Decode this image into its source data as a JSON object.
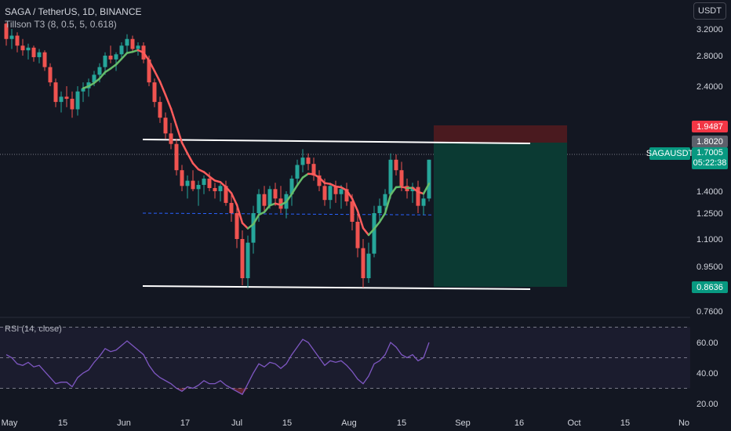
{
  "header": {
    "title": "SAGA / TetherUS, 1D, BINANCE",
    "indicator": "Tillson T3 (8, 0.5, 5, 0.618)",
    "currency_button": "USDT"
  },
  "price_axis": {
    "ticks": [
      "3.2000",
      "2.8000",
      "2.4000",
      "1.4000",
      "1.2500",
      "1.1000",
      "0.9500",
      "0.7600"
    ]
  },
  "price_tags": {
    "stop": "1.9487",
    "target_line": "1.8020",
    "symbol": "SAGAUSDT",
    "last_price": "1.7005",
    "countdown": "05:22:38",
    "target": "0.8636"
  },
  "rsi": {
    "title": "RSI (14, close)",
    "ticks": [
      "60.00",
      "40.00",
      "20.00"
    ]
  },
  "time_axis": {
    "ticks": [
      "May",
      "15",
      "Jun",
      "17",
      "Jul",
      "15",
      "Aug",
      "15",
      "Sep",
      "16",
      "Oct",
      "15",
      "No"
    ]
  },
  "colors": {
    "background": "#131722",
    "up": "#26a69a",
    "down": "#ef5350",
    "t3_up": "#66bb6a",
    "t3_down": "#ff5c5c",
    "rsi_line": "#7e57c2",
    "stop_zone": "#4a1a1f",
    "target_zone": "#0b3a33"
  },
  "chart_data": {
    "type": "candlestick",
    "symbol": "SAGA / TetherUS",
    "interval": "1D",
    "exchange": "BINANCE",
    "last_price": 1.7005,
    "channel": {
      "upper": 1.8,
      "lower": 0.86
    },
    "position": {
      "entry": 1.7005,
      "stop": 1.9487,
      "target": 0.8636
    },
    "candles": [
      [
        3.28,
        3.3,
        2.95,
        3.05
      ],
      [
        3.05,
        3.2,
        2.9,
        3.1
      ],
      [
        3.1,
        3.15,
        2.85,
        2.95
      ],
      [
        2.95,
        3.05,
        2.8,
        2.88
      ],
      [
        2.88,
        2.98,
        2.75,
        2.92
      ],
      [
        2.92,
        2.95,
        2.72,
        2.78
      ],
      [
        2.78,
        2.9,
        2.7,
        2.85
      ],
      [
        2.85,
        2.88,
        2.6,
        2.65
      ],
      [
        2.65,
        2.7,
        2.4,
        2.45
      ],
      [
        2.45,
        2.5,
        2.2,
        2.25
      ],
      [
        2.25,
        2.35,
        2.15,
        2.3
      ],
      [
        2.3,
        2.4,
        2.2,
        2.28
      ],
      [
        2.28,
        2.35,
        2.1,
        2.18
      ],
      [
        2.18,
        2.4,
        2.12,
        2.35
      ],
      [
        2.35,
        2.45,
        2.25,
        2.38
      ],
      [
        2.38,
        2.5,
        2.3,
        2.45
      ],
      [
        2.45,
        2.6,
        2.4,
        2.55
      ],
      [
        2.55,
        2.7,
        2.45,
        2.65
      ],
      [
        2.65,
        2.85,
        2.55,
        2.8
      ],
      [
        2.8,
        2.95,
        2.7,
        2.75
      ],
      [
        2.75,
        2.85,
        2.6,
        2.82
      ],
      [
        2.82,
        3.0,
        2.75,
        2.95
      ],
      [
        2.95,
        3.12,
        2.85,
        3.05
      ],
      [
        3.05,
        3.1,
        2.85,
        2.9
      ],
      [
        2.9,
        3.0,
        2.8,
        2.95
      ],
      [
        2.95,
        3.0,
        2.7,
        2.75
      ],
      [
        2.75,
        2.8,
        2.4,
        2.45
      ],
      [
        2.45,
        2.5,
        2.2,
        2.25
      ],
      [
        2.25,
        2.3,
        2.05,
        2.1
      ],
      [
        2.1,
        2.15,
        1.9,
        1.95
      ],
      [
        1.95,
        2.05,
        1.8,
        1.85
      ],
      [
        1.85,
        1.9,
        1.55,
        1.6
      ],
      [
        1.6,
        1.65,
        1.4,
        1.45
      ],
      [
        1.45,
        1.55,
        1.35,
        1.5
      ],
      [
        1.5,
        1.6,
        1.4,
        1.42
      ],
      [
        1.42,
        1.5,
        1.3,
        1.46
      ],
      [
        1.46,
        1.55,
        1.38,
        1.52
      ],
      [
        1.52,
        1.58,
        1.4,
        1.43
      ],
      [
        1.43,
        1.48,
        1.35,
        1.4
      ],
      [
        1.4,
        1.47,
        1.33,
        1.45
      ],
      [
        1.45,
        1.5,
        1.3,
        1.32
      ],
      [
        1.32,
        1.38,
        1.2,
        1.25
      ],
      [
        1.25,
        1.3,
        1.05,
        1.1
      ],
      [
        1.1,
        1.15,
        0.87,
        0.9
      ],
      [
        0.9,
        1.12,
        0.86,
        1.08
      ],
      [
        1.08,
        1.3,
        1.02,
        1.25
      ],
      [
        1.25,
        1.42,
        1.2,
        1.38
      ],
      [
        1.38,
        1.45,
        1.25,
        1.3
      ],
      [
        1.3,
        1.45,
        1.28,
        1.42
      ],
      [
        1.42,
        1.48,
        1.3,
        1.35
      ],
      [
        1.35,
        1.45,
        1.25,
        1.28
      ],
      [
        1.28,
        1.4,
        1.22,
        1.38
      ],
      [
        1.38,
        1.55,
        1.3,
        1.52
      ],
      [
        1.52,
        1.7,
        1.45,
        1.65
      ],
      [
        1.65,
        1.8,
        1.58,
        1.72
      ],
      [
        1.72,
        1.76,
        1.6,
        1.66
      ],
      [
        1.66,
        1.72,
        1.5,
        1.55
      ],
      [
        1.55,
        1.6,
        1.4,
        1.45
      ],
      [
        1.45,
        1.52,
        1.3,
        1.34
      ],
      [
        1.34,
        1.48,
        1.28,
        1.45
      ],
      [
        1.45,
        1.5,
        1.32,
        1.38
      ],
      [
        1.38,
        1.46,
        1.28,
        1.42
      ],
      [
        1.42,
        1.48,
        1.3,
        1.33
      ],
      [
        1.33,
        1.38,
        1.15,
        1.2
      ],
      [
        1.2,
        1.25,
        1.0,
        1.05
      ],
      [
        1.05,
        1.1,
        0.86,
        0.9
      ],
      [
        0.9,
        1.08,
        0.88,
        1.02
      ],
      [
        1.02,
        1.3,
        1.0,
        1.25
      ],
      [
        1.25,
        1.35,
        1.2,
        1.3
      ],
      [
        1.3,
        1.42,
        1.24,
        1.38
      ],
      [
        1.38,
        1.76,
        1.35,
        1.7
      ],
      [
        1.7,
        1.75,
        1.55,
        1.6
      ],
      [
        1.6,
        1.68,
        1.4,
        1.45
      ],
      [
        1.45,
        1.52,
        1.35,
        1.4
      ],
      [
        1.4,
        1.48,
        1.32,
        1.44
      ],
      [
        1.44,
        1.5,
        1.25,
        1.3
      ],
      [
        1.3,
        1.38,
        1.24,
        1.35
      ],
      [
        1.35,
        1.7,
        1.33,
        1.7
      ]
    ],
    "rsi": [
      52,
      50,
      46,
      45,
      47,
      44,
      45,
      41,
      37,
      33,
      34,
      34,
      31,
      37,
      40,
      42,
      47,
      51,
      56,
      54,
      55,
      58,
      61,
      58,
      55,
      52,
      45,
      40,
      37,
      35,
      33,
      30,
      28,
      31,
      30,
      32,
      35,
      33,
      33,
      35,
      32,
      30,
      28,
      26,
      33,
      40,
      46,
      44,
      47,
      46,
      43,
      46,
      52,
      57,
      62,
      60,
      55,
      50,
      45,
      48,
      47,
      48,
      45,
      41,
      36,
      33,
      38,
      46,
      48,
      52,
      60,
      57,
      52,
      50,
      52,
      48,
      50,
      60
    ],
    "rsi_levels": [
      70,
      50,
      30
    ]
  }
}
